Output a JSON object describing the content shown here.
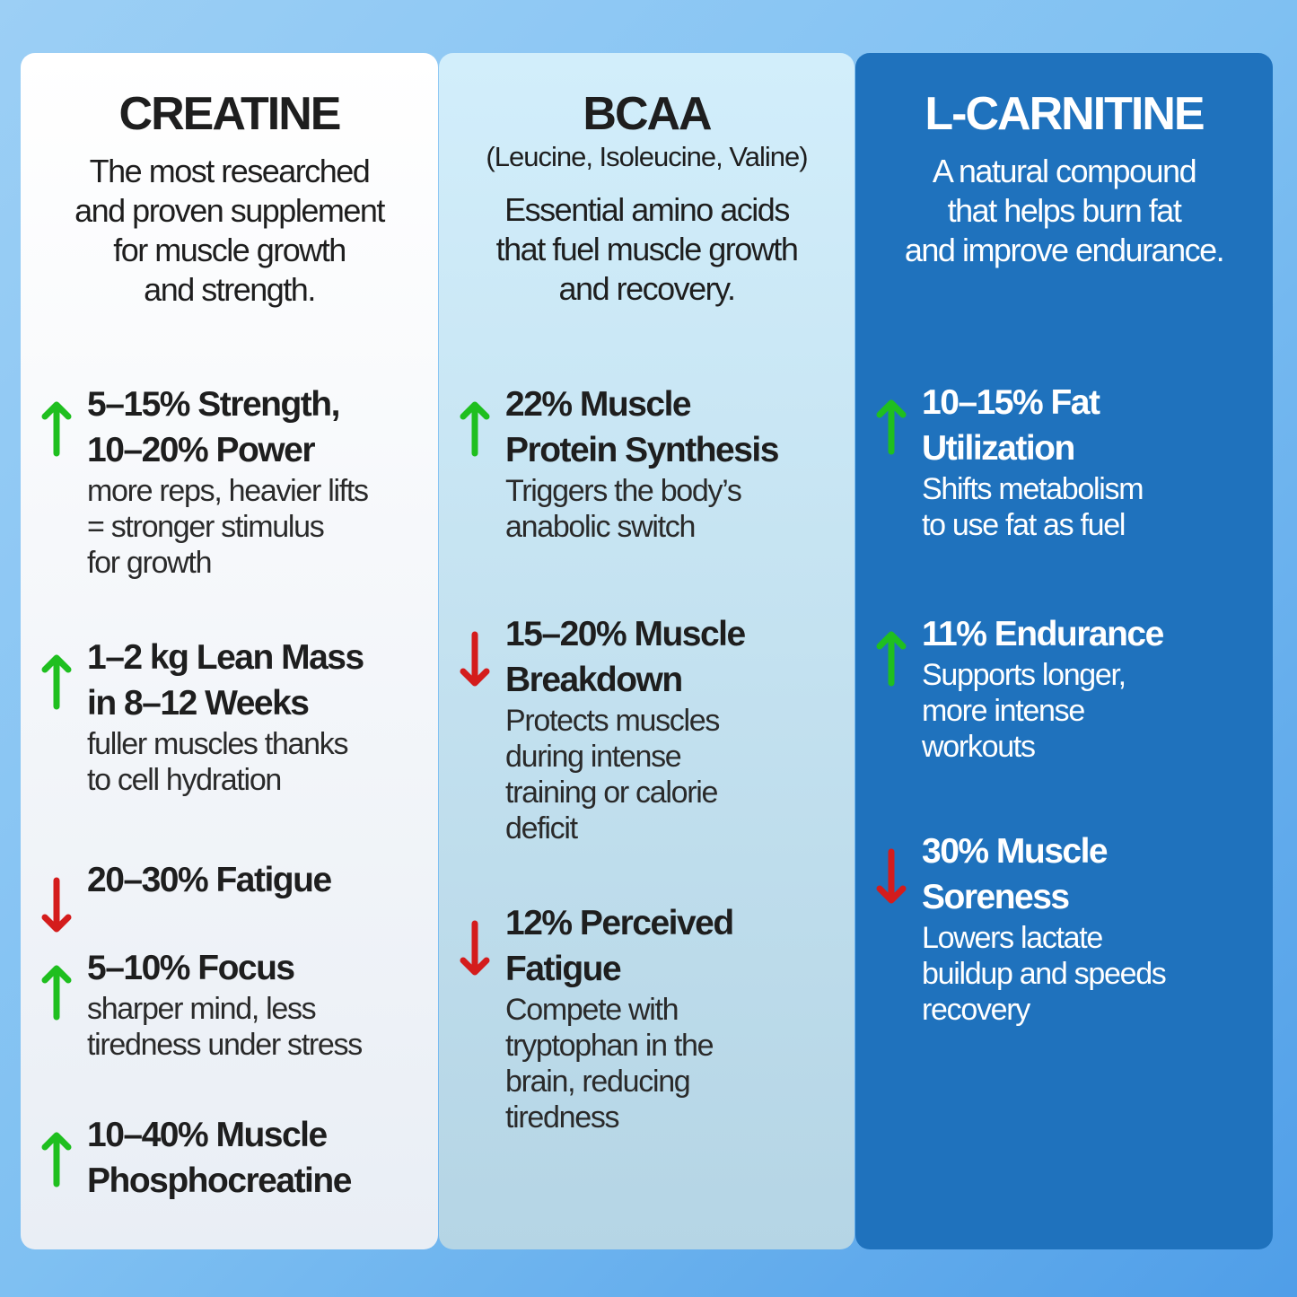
{
  "colors": {
    "up": "#1fbf1f",
    "down": "#d41c1c"
  },
  "columns": [
    {
      "title": "CREATINE",
      "subtitle": "The most researched\nand proven supplement\nfor muscle growth\nand strength.",
      "items": [
        {
          "direction": "up",
          "icon": "arrow-up-icon",
          "heading": "5–15% Strength,\n10–20% Power",
          "desc": "more reps, heavier lifts\n= stronger stimulus\nfor growth"
        },
        {
          "direction": "up",
          "icon": "arrow-up-icon",
          "heading": "1–2 kg Lean Mass\nin 8–12 Weeks",
          "desc": "fuller muscles thanks\nto cell hydration"
        },
        {
          "direction": "down",
          "icon": "arrow-down-icon",
          "heading": "20–30% Fatigue",
          "desc": ""
        },
        {
          "direction": "up",
          "icon": "arrow-up-icon",
          "heading": "5–10% Focus",
          "desc": "sharper mind, less\ntiredness under stress"
        },
        {
          "direction": "up",
          "icon": "arrow-up-icon",
          "heading": "10–40% Muscle\nPhosphocreatine",
          "desc": ""
        }
      ]
    },
    {
      "title": "BCAA",
      "parenthetical": "(Leucine, Isoleucine, Valine)",
      "subtitle": "Essential amino acids\nthat fuel muscle growth\nand recovery.",
      "items": [
        {
          "direction": "up",
          "icon": "arrow-up-icon",
          "heading": "22% Muscle\nProtein Synthesis",
          "desc": "Triggers the body’s\nanabolic switch"
        },
        {
          "direction": "down",
          "icon": "arrow-down-icon",
          "heading": "15–20% Muscle\nBreakdown",
          "desc": "Protects muscles\nduring intense\ntraining or calorie\ndeficit"
        },
        {
          "direction": "down",
          "icon": "arrow-down-icon",
          "heading": "12% Perceived\nFatigue",
          "desc": "Compete with\ntryptophan in the\nbrain, reducing\ntiredness"
        }
      ]
    },
    {
      "title": "L-CARNITINE",
      "subtitle": "A natural compound\nthat helps burn fat\nand improve endurance.",
      "items": [
        {
          "direction": "up",
          "icon": "arrow-up-icon",
          "heading": "10–15% Fat\nUtilization",
          "desc": "Shifts metabolism\nto use fat as fuel"
        },
        {
          "direction": "up",
          "icon": "arrow-up-icon",
          "heading": "11% Endurance",
          "desc": "Supports longer,\nmore intense\nworkouts"
        },
        {
          "direction": "down",
          "icon": "arrow-down-icon",
          "heading": "30% Muscle\nSoreness",
          "desc": "Lowers lactate\nbuildup and speeds\nrecovery"
        }
      ]
    }
  ]
}
